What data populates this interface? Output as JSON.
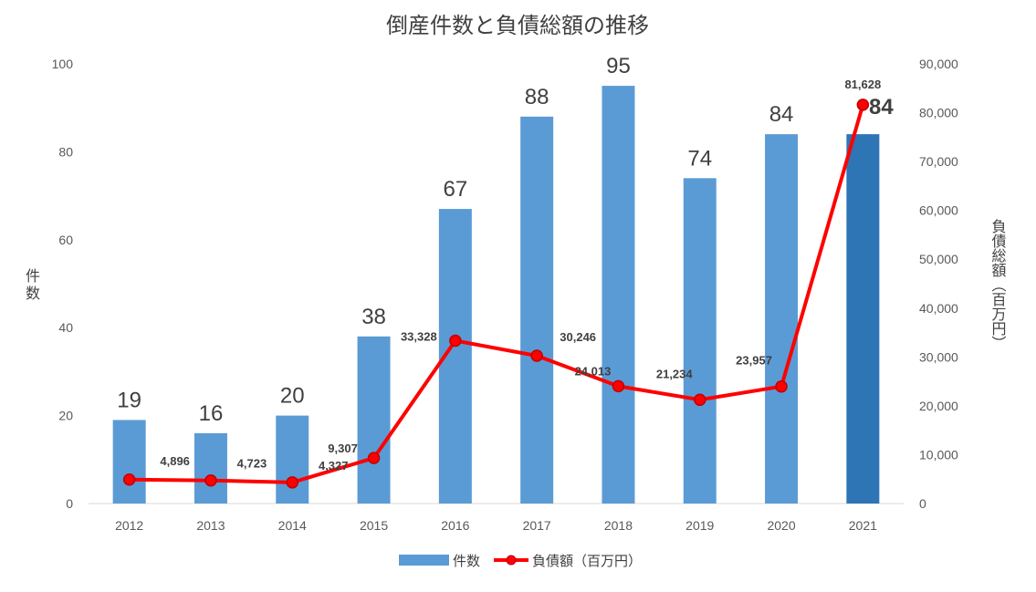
{
  "chart_data": {
    "type": "bar",
    "title": "倒産件数と負債総額の推移",
    "categories": [
      "2012",
      "2013",
      "2014",
      "2015",
      "2016",
      "2017",
      "2018",
      "2019",
      "2020",
      "2021"
    ],
    "series": [
      {
        "name": "件数",
        "type": "bar",
        "axis": "left",
        "values": [
          19,
          16,
          20,
          38,
          67,
          88,
          95,
          74,
          84,
          84
        ],
        "labels": [
          "19",
          "16",
          "20",
          "38",
          "67",
          "88",
          "95",
          "74",
          "84",
          "84"
        ],
        "color": "#5b9bd5",
        "highlight_color": "#2e75b6"
      },
      {
        "name": "負債額（百万円）",
        "type": "line",
        "axis": "right",
        "values": [
          4896,
          4723,
          4327,
          9307,
          33328,
          30246,
          24013,
          21234,
          23957,
          81628
        ],
        "labels": [
          "4,896",
          "4,723",
          "4,327",
          "9,307",
          "33,328",
          "30,246",
          "24,013",
          "21,234",
          "23,957",
          "81,628"
        ],
        "color": "#ff0000"
      }
    ],
    "ylabel": "件数",
    "y2label": "負債総額（百万円）",
    "ylim": [
      0,
      100
    ],
    "y2lim": [
      0,
      90000
    ],
    "yticks": [
      "0",
      "20",
      "40",
      "60",
      "80",
      "100"
    ],
    "y2ticks": [
      "0",
      "10,000",
      "20,000",
      "30,000",
      "40,000",
      "50,000",
      "60,000",
      "70,000",
      "80,000",
      "90,000"
    ],
    "grid": false,
    "legend_position": "bottom"
  }
}
